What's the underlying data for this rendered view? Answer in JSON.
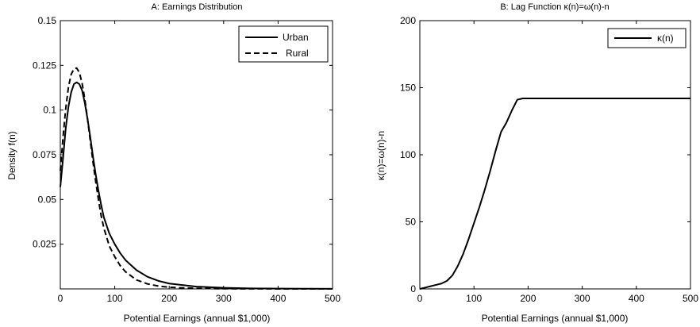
{
  "chart_data": [
    {
      "type": "line",
      "title": "A: Earnings Distribution",
      "xlabel": "Potential Earnings (annual $1,000)",
      "ylabel": "Density f(n)",
      "xlim": [
        0,
        500
      ],
      "ylim": [
        0,
        0.15
      ],
      "xticks": [
        0,
        100,
        200,
        300,
        400,
        500
      ],
      "yticks": [
        0.025,
        0.05,
        0.075,
        0.1,
        0.125,
        0.15
      ],
      "ytick_labels": [
        "0.025",
        "0.05",
        "0.075",
        "0.1",
        "0.125",
        "0.15"
      ],
      "grid": false,
      "legend": "top-right",
      "series": [
        {
          "name": "Urban",
          "style": "solid",
          "x": [
            0,
            5,
            10,
            15,
            20,
            25,
            30,
            35,
            40,
            45,
            50,
            55,
            60,
            65,
            70,
            75,
            80,
            90,
            100,
            110,
            120,
            140,
            160,
            180,
            200,
            250,
            300,
            350,
            400,
            450,
            500
          ],
          "y": [
            0.057,
            0.073,
            0.09,
            0.102,
            0.11,
            0.1145,
            0.1155,
            0.1145,
            0.111,
            0.104,
            0.095,
            0.085,
            0.074,
            0.064,
            0.055,
            0.047,
            0.04,
            0.031,
            0.025,
            0.02,
            0.016,
            0.0105,
            0.0068,
            0.0045,
            0.003,
            0.0013,
            0.0006,
            0.0003,
            0.00015,
            0.0001,
            5e-05
          ]
        },
        {
          "name": "Rural",
          "style": "dashed",
          "x": [
            0,
            5,
            10,
            15,
            20,
            25,
            30,
            35,
            40,
            45,
            50,
            55,
            60,
            65,
            70,
            75,
            80,
            90,
            100,
            110,
            120,
            140,
            160,
            180,
            200,
            250,
            300,
            350,
            400,
            450,
            500
          ],
          "y": [
            0.066,
            0.085,
            0.101,
            0.113,
            0.12,
            0.123,
            0.1235,
            0.121,
            0.115,
            0.106,
            0.095,
            0.083,
            0.071,
            0.06,
            0.05,
            0.041,
            0.034,
            0.024,
            0.018,
            0.013,
            0.0095,
            0.005,
            0.0028,
            0.0016,
            0.0009,
            0.0003,
            0.0001,
            5e-05,
            2e-05,
            1e-05,
            0
          ]
        }
      ]
    },
    {
      "type": "line",
      "title": "B: Lag Function   κ(n)=ω(n)-n",
      "xlabel": "Potential Earnings (annual $1,000)",
      "ylabel": "κ(n)=ω(n)-n",
      "xlim": [
        0,
        500
      ],
      "ylim": [
        0,
        200
      ],
      "xticks": [
        0,
        100,
        200,
        300,
        400,
        500
      ],
      "yticks": [
        0,
        50,
        100,
        150,
        200
      ],
      "grid": false,
      "legend": "top-right",
      "series": [
        {
          "name": "κ(n)",
          "style": "solid",
          "x": [
            0,
            10,
            20,
            30,
            40,
            50,
            55,
            60,
            70,
            80,
            90,
            100,
            110,
            120,
            130,
            140,
            150,
            160,
            170,
            180,
            190,
            200,
            210,
            220,
            250,
            300,
            350,
            400,
            450,
            500
          ],
          "y": [
            0,
            1,
            2,
            3,
            4,
            6,
            8,
            10,
            17,
            26,
            37,
            49,
            61,
            74,
            88,
            103,
            117,
            124,
            133,
            141,
            142,
            142,
            142,
            142,
            142,
            142,
            142,
            142,
            142,
            142
          ]
        }
      ]
    }
  ]
}
